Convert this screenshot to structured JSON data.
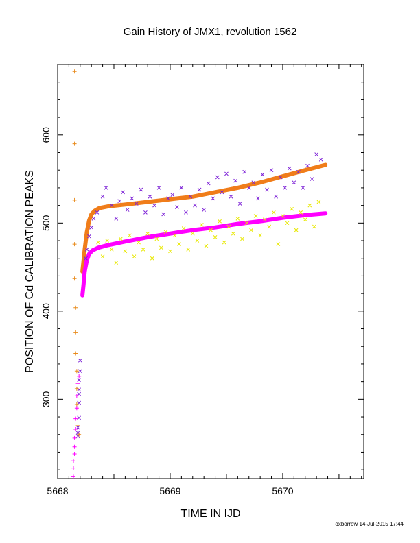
{
  "chart_data": {
    "type": "scatter",
    "title": "Gain History of JMX1, revolution 1562",
    "xlabel": "TIME IN IJD",
    "ylabel": "POSITION OF Cd CALIBRATION PEAKS",
    "xlim": [
      5668.0,
      5670.72
    ],
    "ylim": [
      210,
      680
    ],
    "xticks": [
      5668,
      5669,
      5670
    ],
    "yticks": [
      300,
      400,
      500,
      600
    ],
    "grid": false,
    "legend": "none",
    "footer": "oxborrow 14-Jul-2015 17:44",
    "series": [
      {
        "marker": "x",
        "color": "#7b1fd6",
        "points": [
          [
            5668.18,
            258
          ],
          [
            5668.18,
            262
          ],
          [
            5668.18,
            268
          ],
          [
            5668.19,
            279
          ],
          [
            5668.19,
            296
          ],
          [
            5668.19,
            306
          ],
          [
            5668.19,
            311
          ],
          [
            5668.19,
            322
          ],
          [
            5668.2,
            332
          ],
          [
            5668.2,
            344
          ],
          [
            5668.25,
            460
          ],
          [
            5668.26,
            470
          ],
          [
            5668.28,
            485
          ],
          [
            5668.3,
            495
          ],
          [
            5668.32,
            505
          ],
          [
            5668.35,
            512
          ],
          [
            5668.4,
            530
          ],
          [
            5668.43,
            540
          ],
          [
            5668.48,
            520
          ],
          [
            5668.52,
            505
          ],
          [
            5668.55,
            525
          ],
          [
            5668.58,
            535
          ],
          [
            5668.62,
            515
          ],
          [
            5668.66,
            528
          ],
          [
            5668.7,
            522
          ],
          [
            5668.74,
            538
          ],
          [
            5668.78,
            512
          ],
          [
            5668.82,
            530
          ],
          [
            5668.86,
            520
          ],
          [
            5668.9,
            540
          ],
          [
            5668.94,
            510
          ],
          [
            5668.98,
            528
          ],
          [
            5669.02,
            532
          ],
          [
            5669.06,
            518
          ],
          [
            5669.1,
            540
          ],
          [
            5669.14,
            512
          ],
          [
            5669.18,
            530
          ],
          [
            5669.22,
            520
          ],
          [
            5669.26,
            538
          ],
          [
            5669.3,
            515
          ],
          [
            5669.34,
            545
          ],
          [
            5669.38,
            528
          ],
          [
            5669.42,
            552
          ],
          [
            5669.46,
            535
          ],
          [
            5669.5,
            556
          ],
          [
            5669.54,
            530
          ],
          [
            5669.58,
            548
          ],
          [
            5669.62,
            522
          ],
          [
            5669.66,
            558
          ],
          [
            5669.7,
            540
          ],
          [
            5669.74,
            546
          ],
          [
            5669.78,
            528
          ],
          [
            5669.82,
            555
          ],
          [
            5669.86,
            538
          ],
          [
            5669.9,
            560
          ],
          [
            5669.94,
            530
          ],
          [
            5669.98,
            552
          ],
          [
            5670.02,
            540
          ],
          [
            5670.06,
            562
          ],
          [
            5670.1,
            546
          ],
          [
            5670.14,
            558
          ],
          [
            5670.18,
            540
          ],
          [
            5670.22,
            565
          ],
          [
            5670.26,
            550
          ],
          [
            5670.3,
            578
          ],
          [
            5670.34,
            572
          ]
        ]
      },
      {
        "marker": "x",
        "color": "#e8e800",
        "points": [
          [
            5668.36,
            478
          ],
          [
            5668.4,
            462
          ],
          [
            5668.44,
            480
          ],
          [
            5668.48,
            470
          ],
          [
            5668.52,
            455
          ],
          [
            5668.56,
            482
          ],
          [
            5668.6,
            468
          ],
          [
            5668.64,
            486
          ],
          [
            5668.68,
            462
          ],
          [
            5668.72,
            478
          ],
          [
            5668.76,
            470
          ],
          [
            5668.8,
            488
          ],
          [
            5668.84,
            460
          ],
          [
            5668.88,
            482
          ],
          [
            5668.92,
            472
          ],
          [
            5668.96,
            490
          ],
          [
            5669.0,
            468
          ],
          [
            5669.04,
            486
          ],
          [
            5669.08,
            476
          ],
          [
            5669.12,
            494
          ],
          [
            5669.16,
            470
          ],
          [
            5669.2,
            488
          ],
          [
            5669.24,
            480
          ],
          [
            5669.28,
            498
          ],
          [
            5669.32,
            474
          ],
          [
            5669.36,
            492
          ],
          [
            5669.4,
            484
          ],
          [
            5669.44,
            502
          ],
          [
            5669.48,
            478
          ],
          [
            5669.52,
            496
          ],
          [
            5669.56,
            488
          ],
          [
            5669.6,
            505
          ],
          [
            5669.64,
            482
          ],
          [
            5669.68,
            500
          ],
          [
            5669.72,
            492
          ],
          [
            5669.76,
            508
          ],
          [
            5669.8,
            486
          ],
          [
            5669.84,
            504
          ],
          [
            5669.88,
            496
          ],
          [
            5669.92,
            512
          ],
          [
            5669.96,
            476
          ],
          [
            5670.0,
            508
          ],
          [
            5670.04,
            500
          ],
          [
            5670.08,
            516
          ],
          [
            5670.12,
            492
          ],
          [
            5670.16,
            512
          ],
          [
            5670.2,
            504
          ],
          [
            5670.24,
            520
          ],
          [
            5670.28,
            496
          ],
          [
            5670.32,
            524
          ]
        ]
      },
      {
        "marker": "+",
        "color": "#e88a1a",
        "points": [
          [
            5668.15,
            672
          ],
          [
            5668.15,
            590
          ],
          [
            5668.15,
            526
          ],
          [
            5668.15,
            476
          ],
          [
            5668.15,
            437
          ],
          [
            5668.16,
            404
          ],
          [
            5668.16,
            376
          ],
          [
            5668.16,
            352
          ],
          [
            5668.17,
            332
          ],
          [
            5668.17,
            312
          ],
          [
            5668.17,
            294
          ],
          [
            5668.18,
            282
          ],
          [
            5668.18,
            270
          ],
          [
            5668.19,
            260
          ]
        ]
      },
      {
        "marker": "+",
        "color": "#ff00ff",
        "points": [
          [
            5668.14,
            212
          ],
          [
            5668.14,
            222
          ],
          [
            5668.14,
            230
          ],
          [
            5668.15,
            238
          ],
          [
            5668.15,
            246
          ],
          [
            5668.15,
            256
          ],
          [
            5668.16,
            266
          ],
          [
            5668.16,
            278
          ],
          [
            5668.17,
            290
          ],
          [
            5668.17,
            304
          ],
          [
            5668.18,
            318
          ],
          [
            5668.19,
            326
          ]
        ]
      }
    ],
    "fits": [
      {
        "color": "#f07d1a",
        "points": [
          [
            5668.22,
            445
          ],
          [
            5668.24,
            470
          ],
          [
            5668.26,
            490
          ],
          [
            5668.28,
            503
          ],
          [
            5668.3,
            510
          ],
          [
            5668.33,
            514
          ],
          [
            5668.37,
            517
          ],
          [
            5668.45,
            519
          ],
          [
            5668.6,
            521
          ],
          [
            5668.8,
            524
          ],
          [
            5669.0,
            527
          ],
          [
            5669.2,
            530
          ],
          [
            5669.4,
            535
          ],
          [
            5669.6,
            540
          ],
          [
            5669.8,
            546
          ],
          [
            5670.0,
            553
          ],
          [
            5670.2,
            560
          ],
          [
            5670.38,
            566
          ]
        ]
      },
      {
        "color": "#ff00ff",
        "points": [
          [
            5668.22,
            418
          ],
          [
            5668.23,
            430
          ],
          [
            5668.24,
            445
          ],
          [
            5668.26,
            458
          ],
          [
            5668.28,
            465
          ],
          [
            5668.31,
            469
          ],
          [
            5668.36,
            472
          ],
          [
            5668.45,
            475
          ],
          [
            5668.6,
            479
          ],
          [
            5668.8,
            484
          ],
          [
            5669.0,
            488
          ],
          [
            5669.2,
            492
          ],
          [
            5669.4,
            495
          ],
          [
            5669.6,
            499
          ],
          [
            5669.8,
            502
          ],
          [
            5670.0,
            506
          ],
          [
            5670.2,
            509
          ],
          [
            5670.38,
            511
          ]
        ]
      }
    ]
  }
}
